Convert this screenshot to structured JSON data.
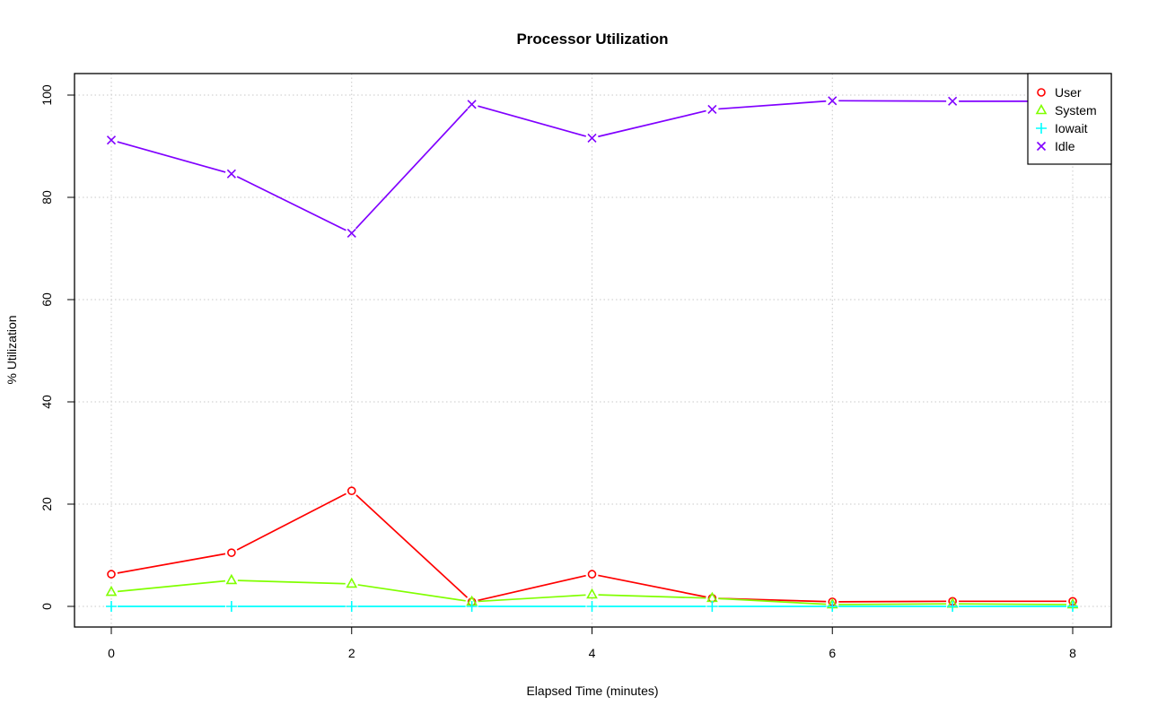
{
  "chart_data": {
    "type": "line",
    "title": "Processor Utilization",
    "xlabel": "Elapsed Time (minutes)",
    "ylabel": "% Utilization",
    "x": [
      0,
      1,
      2,
      3,
      4,
      5,
      6,
      7,
      8
    ],
    "xticks": [
      "0",
      "2",
      "4",
      "6",
      "8"
    ],
    "yticks": [
      "0",
      "20",
      "40",
      "60",
      "80",
      "100"
    ],
    "xlim": [
      -0.3,
      8.3
    ],
    "ylim": [
      -4,
      104
    ],
    "grid": true,
    "legend_position": "top-right",
    "series": [
      {
        "name": "User",
        "color": "#ff0000",
        "marker": "circle",
        "values": [
          6.3,
          10.5,
          22.6,
          0.9,
          6.3,
          1.6,
          0.9,
          1.0,
          1.0
        ]
      },
      {
        "name": "System",
        "color": "#80ff00",
        "marker": "triangle",
        "values": [
          2.8,
          5.1,
          4.4,
          0.9,
          2.3,
          1.6,
          0.35,
          0.5,
          0.35
        ]
      },
      {
        "name": "Iowait",
        "color": "#00ffff",
        "marker": "plus",
        "values": [
          0,
          0,
          0,
          0,
          0,
          0,
          0,
          0,
          0
        ]
      },
      {
        "name": "Idle",
        "color": "#8000ff",
        "marker": "cross",
        "values": [
          91.2,
          84.6,
          73.0,
          98.2,
          91.6,
          97.2,
          98.9,
          98.8,
          98.8
        ]
      }
    ]
  }
}
